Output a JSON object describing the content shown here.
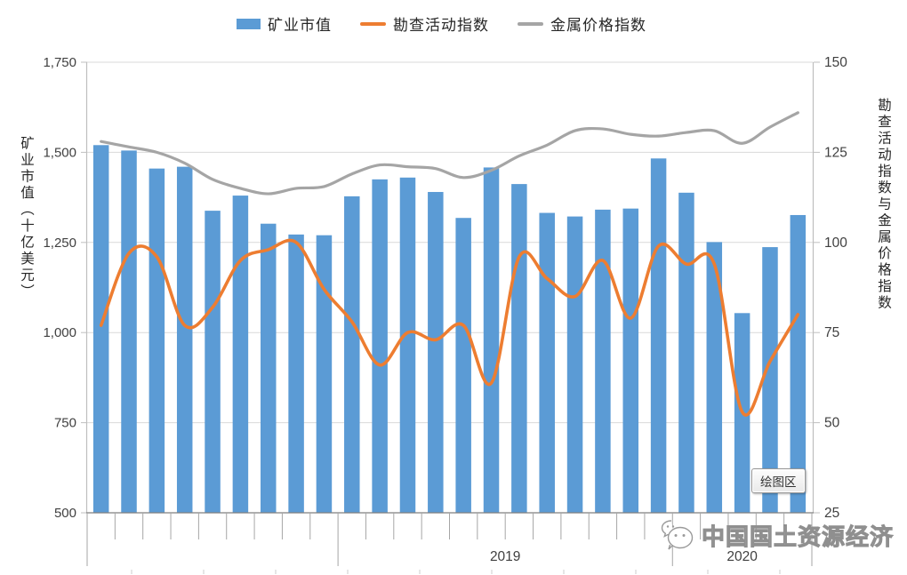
{
  "legend": {
    "items": [
      {
        "label": "矿业市值",
        "swatch": "bar-swatch",
        "color": "#5B9BD5"
      },
      {
        "label": "勘查活动指数",
        "swatch": "line-swatch",
        "color": "#ED7D31"
      },
      {
        "label": "金属价格指数",
        "swatch": "line-swatch",
        "color": "#A5A5A5"
      }
    ]
  },
  "tooltip": {
    "label": "绘图区"
  },
  "watermark": {
    "icon": "wechat-icon",
    "text": "中国国土资源经济"
  },
  "chart_data": {
    "type": "combo-bar-line",
    "n_points": 26,
    "grid": "horizontal",
    "background": "#ffffff",
    "x_axis": {
      "year_sections": [
        {
          "label": "",
          "start_slot": 0,
          "end_slot": 9
        },
        {
          "label": "2019",
          "start_slot": 9,
          "end_slot": 21
        },
        {
          "label": "2020",
          "start_slot": 21,
          "end_slot": 26
        }
      ]
    },
    "left_axis": {
      "title": "矿业市值（十亿美元）",
      "min": 500,
      "max": 1750,
      "ticks": [
        {
          "value": 1750,
          "label": "1,750"
        },
        {
          "value": 1500,
          "label": "1,500"
        },
        {
          "value": 1250,
          "label": "1,250"
        },
        {
          "value": 1000,
          "label": "1,000"
        },
        {
          "value": 750,
          "label": "750"
        },
        {
          "value": 500,
          "label": "500"
        }
      ]
    },
    "right_axis": {
      "title": "勘查活动指数与金属价格指数",
      "min": 25,
      "max": 150,
      "ticks": [
        {
          "value": 150,
          "label": "150"
        },
        {
          "value": 125,
          "label": "125"
        },
        {
          "value": 100,
          "label": "100"
        },
        {
          "value": 75,
          "label": "75"
        },
        {
          "value": 50,
          "label": "50"
        },
        {
          "value": 25,
          "label": "25"
        }
      ]
    },
    "series": [
      {
        "name": "矿业市值",
        "type": "bar",
        "axis": "left",
        "color": "#5B9BD5",
        "values": [
          1520,
          1505,
          1455,
          1460,
          1338,
          1380,
          1302,
          1272,
          1270,
          1378,
          1425,
          1430,
          1390,
          1318,
          1458,
          1412,
          1332,
          1322,
          1341,
          1344,
          1483,
          1388,
          1251,
          1054,
          1237,
          1326
        ]
      },
      {
        "name": "勘查活动指数",
        "type": "line",
        "axis": "right",
        "color": "#ED7D31",
        "values": [
          77,
          97,
          96,
          77,
          82,
          95,
          98,
          100,
          87,
          78,
          66,
          75,
          73,
          77,
          61,
          96,
          90,
          85,
          95,
          79,
          99,
          94,
          94,
          53,
          67,
          80
        ]
      },
      {
        "name": "金属价格指数",
        "type": "line",
        "axis": "right",
        "color": "#A5A5A5",
        "values": [
          128,
          126.5,
          125,
          122,
          117.5,
          115,
          113.5,
          115,
          115.5,
          119,
          121.5,
          121,
          120.5,
          118,
          120,
          124,
          127,
          131,
          131.5,
          130,
          129.5,
          130.5,
          131,
          127.5,
          132,
          136
        ]
      }
    ]
  }
}
